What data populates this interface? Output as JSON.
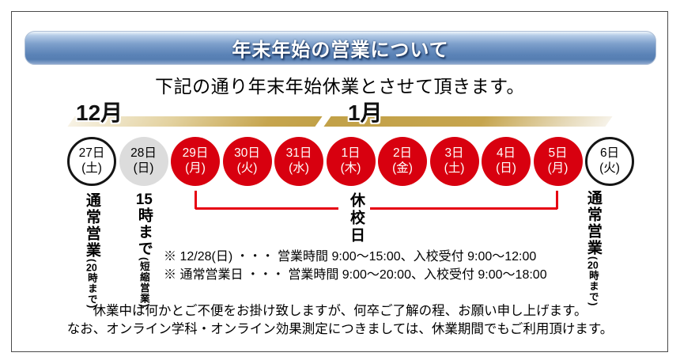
{
  "banner": {
    "title": "年末年始の営業について"
  },
  "heading": "下記の通り年末年始休業とさせて頂きます。",
  "months": {
    "left": "12月",
    "right": "1月"
  },
  "days": [
    {
      "date": "27日",
      "dow": "(土)",
      "status": "open"
    },
    {
      "date": "28日",
      "dow": "(日)",
      "status": "short"
    },
    {
      "date": "29日",
      "dow": "(月)",
      "status": "closed"
    },
    {
      "date": "30日",
      "dow": "(火)",
      "status": "closed"
    },
    {
      "date": "31日",
      "dow": "(水)",
      "status": "closed"
    },
    {
      "date": "1日",
      "dow": "(木)",
      "status": "closed"
    },
    {
      "date": "2日",
      "dow": "(金)",
      "status": "closed"
    },
    {
      "date": "3日",
      "dow": "(土)",
      "status": "closed"
    },
    {
      "date": "4日",
      "dow": "(日)",
      "status": "closed"
    },
    {
      "date": "5日",
      "dow": "(月)",
      "status": "closed"
    },
    {
      "date": "6日",
      "dow": "(火)",
      "status": "open"
    }
  ],
  "bracket_label": "休校日",
  "side_labels": {
    "col1": {
      "main": "通常営業",
      "sub_open": "(",
      "sub_tcy": "20",
      "sub_rest": "時まで)"
    },
    "col2": {
      "main_tcy": "15",
      "main_rest": "時まで",
      "sub": "(短縮営業)"
    },
    "col3": {
      "main": "通常営業",
      "sub_open": "(",
      "sub_tcy": "20",
      "sub_rest": "時まで)"
    }
  },
  "notes": [
    "※ 12/28(日) ・・・ 営業時間 9:00～15:00、入校受付 9:00～12:00",
    "※ 通常営業日 ・・・ 営業時間 9:00～20:00、入校受付 9:00～18:00"
  ],
  "footer": [
    "休業中は何かとご不便をお掛け致しますが、何卒ご了解の程、お願い申し上げます。",
    "なお、オンライン学科・オンライン効果測定につきましては、休業期間でもご利用頂けます。"
  ],
  "colors": {
    "closed_red": "#d8000f",
    "short_gray": "#dcdcdc",
    "open_white": "#ffffff",
    "bracket_red": "#e60012",
    "bar_gold": "#c2a148",
    "banner_blue": "#5b83b7"
  }
}
